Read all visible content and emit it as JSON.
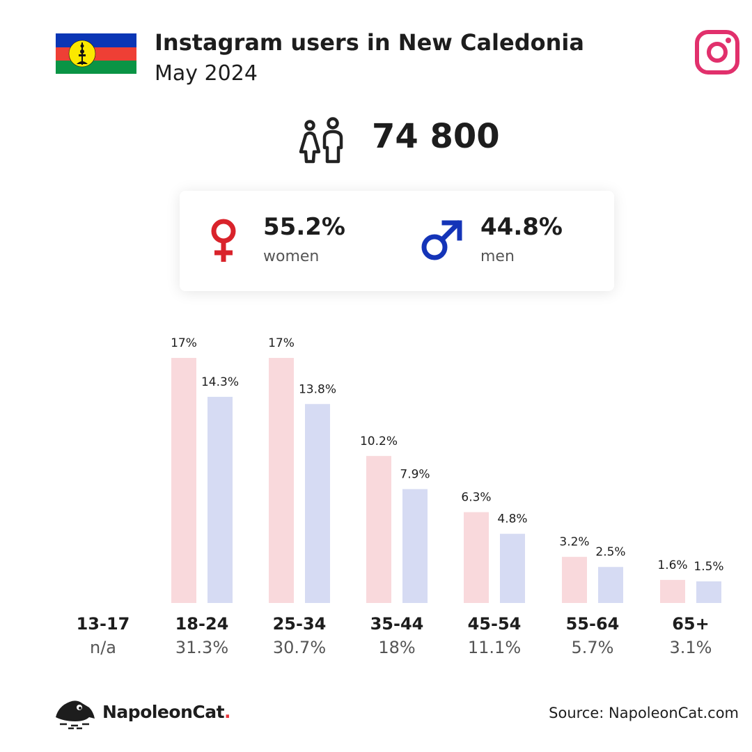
{
  "header": {
    "title": "Instagram users in New Caledonia",
    "subtitle": "May 2024"
  },
  "total_users": "74 800",
  "gender": {
    "women": {
      "pct": "55.2%",
      "label": "women"
    },
    "men": {
      "pct": "44.8%",
      "label": "men"
    }
  },
  "colors": {
    "women_bar": "#f9d9dc",
    "men_bar": "#d6dbf3",
    "female_symbol": "#d9232b",
    "male_symbol": "#1434b8",
    "instagram": "#e1306c"
  },
  "icons": [
    "new-caledonia-flag-icon",
    "instagram-icon",
    "people-icon",
    "female-icon",
    "male-icon",
    "napoleoncat-logo-icon"
  ],
  "chart_data": {
    "type": "bar",
    "categories": [
      "13-17",
      "18-24",
      "25-34",
      "35-44",
      "45-54",
      "55-64",
      "65+"
    ],
    "category_shares": [
      "n/a",
      "31.3%",
      "30.7%",
      "18%",
      "11.1%",
      "5.7%",
      "3.1%"
    ],
    "series": [
      {
        "values": [
          null,
          17,
          17,
          10.2,
          6.3,
          3.2,
          1.6
        ],
        "labels": [
          "",
          "17%",
          "17%",
          "10.2%",
          "6.3%",
          "3.2%",
          "1.6%"
        ]
      },
      {
        "values": [
          null,
          14.3,
          13.8,
          7.9,
          4.8,
          2.5,
          1.5
        ],
        "labels": [
          "",
          "14.3%",
          "13.8%",
          "7.9%",
          "4.8%",
          "2.5%",
          "1.5%"
        ]
      }
    ],
    "ylim": [
      0,
      17
    ],
    "grid": false,
    "legend": "none"
  },
  "footer": {
    "brand": "NapoleonCat",
    "brand_dot": ".",
    "source": "Source: NapoleonCat.com"
  }
}
